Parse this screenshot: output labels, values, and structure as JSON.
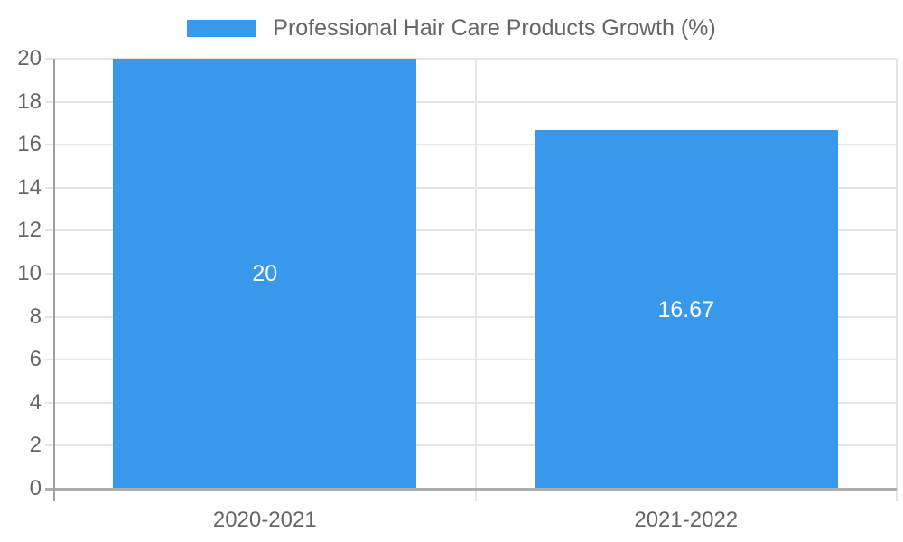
{
  "chart_data": {
    "type": "bar",
    "title": "",
    "legend": {
      "label": "Professional Hair Care Products Growth (%)",
      "position": "top"
    },
    "categories": [
      "2020-2021",
      "2021-2022"
    ],
    "values": [
      20,
      16.67
    ],
    "value_labels": [
      "20",
      "16.67"
    ],
    "value_labels_position": "inside-center",
    "yticks": [
      0,
      2,
      4,
      6,
      8,
      10,
      12,
      14,
      16,
      18,
      20
    ],
    "ylim": [
      0,
      20
    ],
    "xlabel": "",
    "ylabel": "",
    "grid": true,
    "colors": {
      "bar": "#3898ec",
      "text": "#666666",
      "grid": "#e5e5e5",
      "axis": "#9e9e9e",
      "zero_line": "#adadad",
      "value_label": "#ffffff",
      "background": "#ffffff"
    }
  }
}
